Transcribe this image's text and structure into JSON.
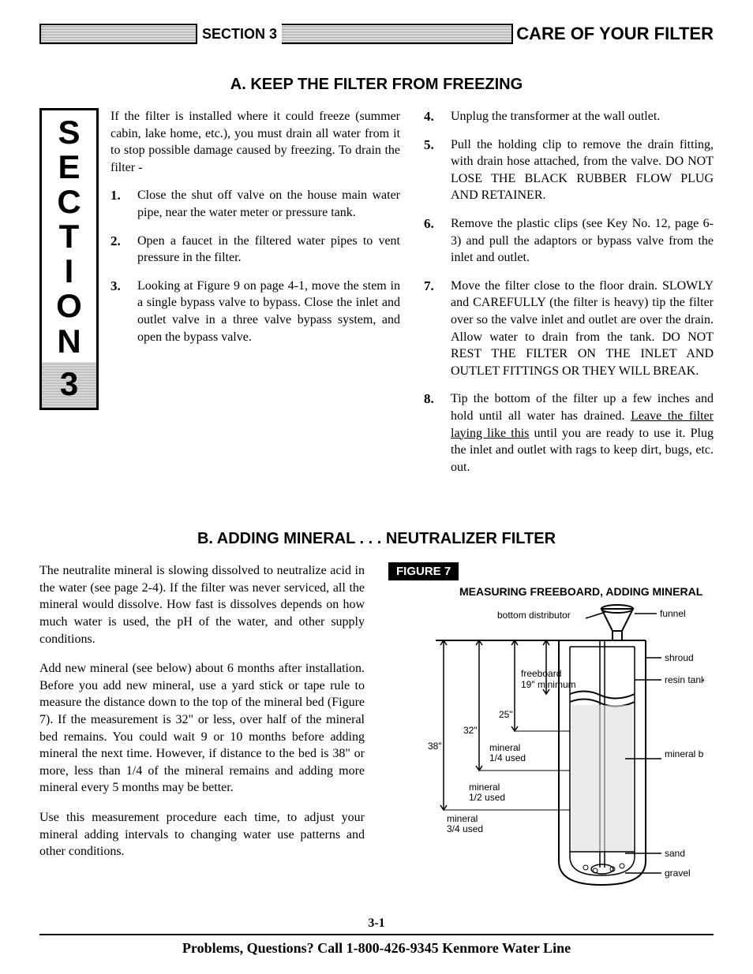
{
  "header": {
    "section_label": "SECTION 3",
    "title": "CARE OF YOUR FILTER"
  },
  "side_tab": {
    "letters": [
      "S",
      "E",
      "C",
      "T",
      "I",
      "O",
      "N"
    ],
    "number": "3"
  },
  "section_a": {
    "title": "A.  KEEP THE FILTER FROM FREEZING",
    "intro": "If the filter is installed where it could freeze (summer cabin, lake home, etc.), you must drain all water from it to stop possible damage caused by freezing. To drain the filter -",
    "left_steps": [
      "Close the shut off valve on the house main water pipe, near the water meter or pressure tank.",
      "Open a faucet in the filtered water pipes to vent pressure in the filter.",
      "Looking at Figure 9 on page 4-1, move the stem in a single bypass valve to bypass. Close the inlet and outlet valve in a three valve bypass system, and open the bypass valve."
    ],
    "right_steps": [
      "Unplug the transformer at the wall outlet.",
      "Pull the holding clip to remove the drain fitting, with drain hose attached, from the valve. DO NOT LOSE THE BLACK RUBBER FLOW PLUG AND RETAINER.",
      "Remove the plastic clips (see Key No. 12, page 6-3) and pull the adaptors or bypass valve from the inlet and outlet.",
      "Move the filter close to the floor drain. SLOWLY and CAREFULLY (the filter is heavy) tip the filter over so the valve inlet and outlet are over the drain. Allow water to drain from the tank. DO NOT REST THE FILTER ON THE INLET AND OUTLET FITTINGS OR THEY WILL BREAK.",
      "Tip the bottom of the filter up a few inches and hold until all water has drained. Leave the filter laying like this until you are ready to use it. Plug the inlet and outlet with rags to keep dirt, bugs, etc. out."
    ],
    "underline_phrase": "Leave the filter laying like this"
  },
  "section_b": {
    "title": "B.  ADDING MINERAL . . . NEUTRALIZER FILTER",
    "paras": [
      "The neutralite mineral is slowing dissolved to neutralize acid in the water (see page 2-4). If the filter was never serviced, all the mineral would dissolve. How fast is dissolves depends on how much water is used, the pH of the water, and other supply conditions.",
      "Add new mineral (see below) about 6 months after installation. Before you add new mineral, use a yard stick or tape rule to measure the distance down to the top of the mineral bed (Figure 7). If the measurement is 32\" or less, over half of the mineral bed remains. You could wait 9 or 10 months before adding mineral the next time. However, if distance to the bed is 38\" or more, less than 1/4 of the mineral remains and adding more mineral every 5 months may be better.",
      "Use this measurement procedure each time, to adjust your mineral adding intervals to changing water use patterns and other conditions."
    ]
  },
  "figure": {
    "label": "FIGURE 7",
    "caption": "MEASURING FREEBOARD, ADDING MINERAL",
    "labels": {
      "bottom_distributor": "bottom distributor",
      "funnel": "funnel",
      "shroud": "shroud",
      "resin_tank": "resin tank",
      "mineral_bed": "mineral bed",
      "sand": "sand",
      "gravel": "gravel",
      "freeboard": "freeboard",
      "freeboard_min": "19\" minimum",
      "d25": "25\"",
      "d32": "32\"",
      "d38": "38\"",
      "m14": "mineral 1/4 used",
      "m12": "mineral 1/2 used",
      "m34": "mineral 3/4 used"
    }
  },
  "footer": {
    "page": "3-1",
    "text": "Problems, Questions? Call 1-800-426-9345 Kenmore Water Line"
  }
}
